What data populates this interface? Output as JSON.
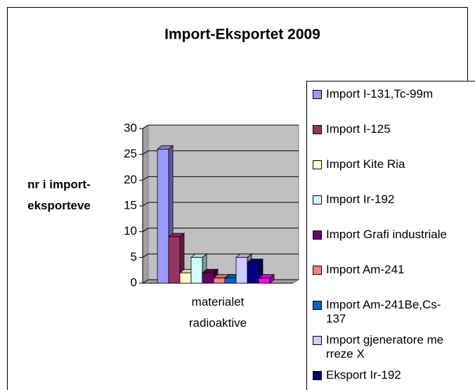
{
  "chart_data": {
    "type": "bar3d",
    "title": "Import-Eksportet 2009",
    "y_label": "nr i import-eksporteve",
    "categories": [
      "materialet radioaktive"
    ],
    "series": [
      {
        "name": "Import I-131,Tc-99m",
        "color": "#9999ff",
        "values": [
          26
        ]
      },
      {
        "name": "Import I-125",
        "color": "#993366",
        "values": [
          9
        ]
      },
      {
        "name": "Import Kite Ria",
        "color": "#ffffcc",
        "values": [
          2
        ]
      },
      {
        "name": "Import Ir-192",
        "color": "#ccffff",
        "values": [
          5
        ]
      },
      {
        "name": "Import Grafi industriale",
        "color": "#660066",
        "values": [
          2
        ]
      },
      {
        "name": "Import Am-241",
        "color": "#ff8080",
        "values": [
          1
        ]
      },
      {
        "name": "Import Am-241Be,Cs-137",
        "color": "#0066cc",
        "values": [
          1
        ]
      },
      {
        "name": "Import gjeneratore me rreze X",
        "color": "#ccccff",
        "values": [
          5
        ]
      },
      {
        "name": "Eksport Ir-192",
        "color": "#000080",
        "values": [
          4
        ]
      },
      {
        "name": null,
        "color": "#ff00ff",
        "values": [
          1
        ]
      }
    ],
    "ylim": [
      0,
      30
    ],
    "yticks": [
      0,
      5,
      10,
      15,
      20,
      25,
      30
    ],
    "grid": true,
    "legend": "right"
  }
}
